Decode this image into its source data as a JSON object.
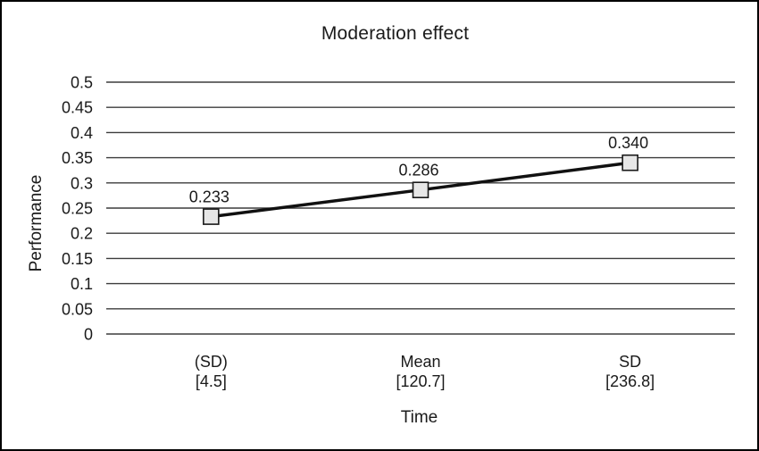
{
  "chart_data": {
    "type": "line",
    "title": "Moderation effect",
    "xlabel": "Time",
    "ylabel": "Performance",
    "categories": [
      {
        "label": "(SD)",
        "sublabel": "[4.5]"
      },
      {
        "label": "Mean",
        "sublabel": "[120.7]"
      },
      {
        "label": "SD",
        "sublabel": "[236.8]"
      }
    ],
    "series": [
      {
        "name": "Performance",
        "values": [
          0.233,
          0.286,
          0.34
        ],
        "point_labels": [
          "0.233",
          "0.286",
          "0.340"
        ]
      }
    ],
    "ylim": [
      0,
      0.5
    ],
    "yticks": {
      "values": [
        0,
        0.05,
        0.1,
        0.15,
        0.2,
        0.25,
        0.3,
        0.35,
        0.4,
        0.45,
        0.5
      ],
      "labels": [
        "0",
        "0.05",
        "0.1",
        "0.15",
        "0.2",
        "0.25",
        "0.3",
        "0.35",
        "0.4",
        "0.45",
        "0.5"
      ]
    },
    "grid": true,
    "legend": "none",
    "marker_shape": "square",
    "colors": {
      "line": "#111111",
      "marker_fill": "#e7e7e7",
      "marker_stroke": "#1a1a1a",
      "grid": "#3c3c3c",
      "text": "#1a1a1a",
      "background": "#ffffff",
      "border": "#000000"
    }
  }
}
